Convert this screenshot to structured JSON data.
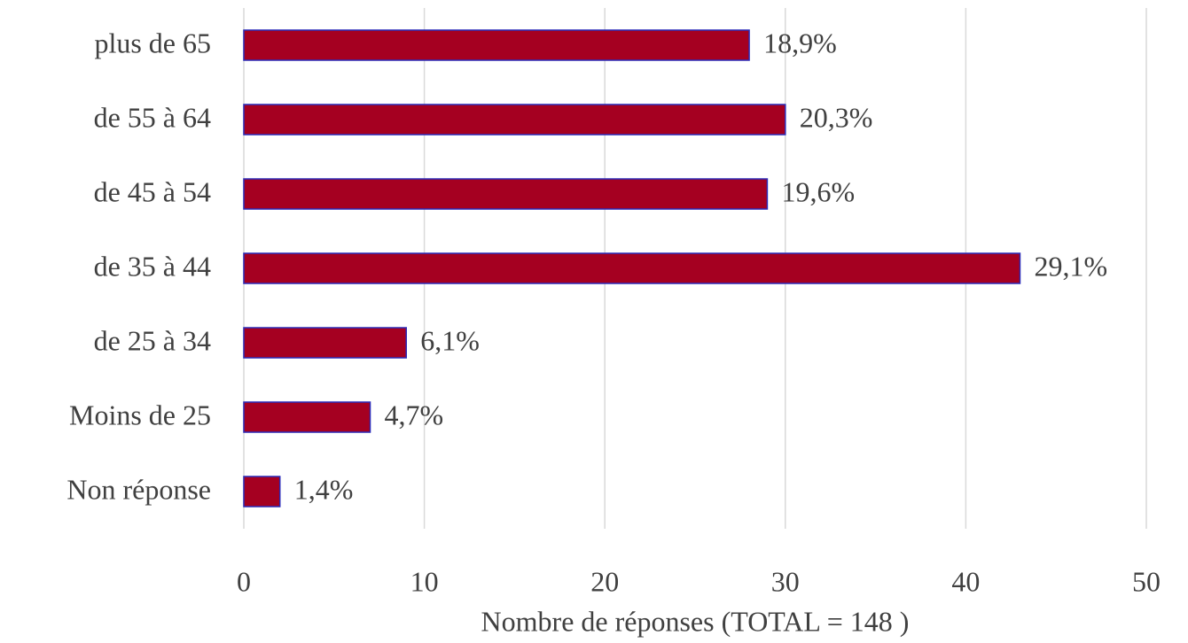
{
  "chart_data": {
    "type": "hbar",
    "categories": [
      "plus de 65",
      "de 55 à 64",
      "de 45 à 54",
      "de 35 à 44",
      "de 25 à 34",
      "Moins de 25",
      "Non réponse"
    ],
    "values": [
      28,
      30,
      29,
      43,
      9,
      7,
      2
    ],
    "value_labels": [
      "18,9%",
      "20,3%",
      "19,6%",
      "29,1%",
      "6,1%",
      "4,7%",
      "1,4%"
    ],
    "color": "#a50021",
    "xlabel": "Nombre de réponses (TOTAL = 148 )",
    "xlim": [
      0,
      50
    ],
    "xticks": [
      0,
      10,
      20,
      30,
      40,
      50
    ],
    "grid": true
  }
}
